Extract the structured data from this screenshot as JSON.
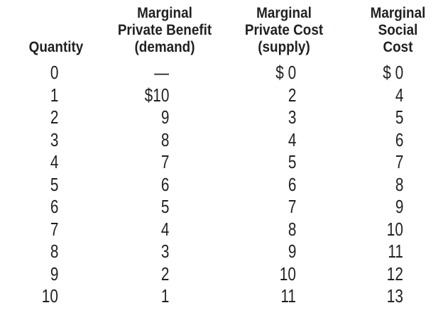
{
  "page": {
    "background_color": "#ffffff",
    "text_color": "#231f20"
  },
  "table": {
    "name": "marginal-benefit-and-cost-schedule",
    "columns": [
      {
        "id": "quantity",
        "header_lines": [
          "Quantity"
        ]
      },
      {
        "id": "marginal_private_benefit",
        "header_lines": [
          "Marginal",
          "Private Benefit",
          "(demand)"
        ]
      },
      {
        "id": "marginal_private_cost",
        "header_lines": [
          "Marginal",
          "Private Cost",
          "(supply)"
        ]
      },
      {
        "id": "marginal_social_cost",
        "header_lines": [
          "Marginal",
          "Social",
          "Cost"
        ]
      }
    ],
    "rows": [
      [
        "0",
        "—",
        "$ 0",
        "$ 0"
      ],
      [
        "1",
        "$10",
        "2",
        "4"
      ],
      [
        "2",
        "9",
        "3",
        "5"
      ],
      [
        "3",
        "8",
        "4",
        "6"
      ],
      [
        "4",
        "7",
        "5",
        "7"
      ],
      [
        "5",
        "6",
        "6",
        "8"
      ],
      [
        "6",
        "5",
        "7",
        "9"
      ],
      [
        "7",
        "4",
        "8",
        "10"
      ],
      [
        "8",
        "3",
        "9",
        "11"
      ],
      [
        "9",
        "2",
        "10",
        "12"
      ],
      [
        "10",
        "1",
        "11",
        "13"
      ]
    ]
  }
}
